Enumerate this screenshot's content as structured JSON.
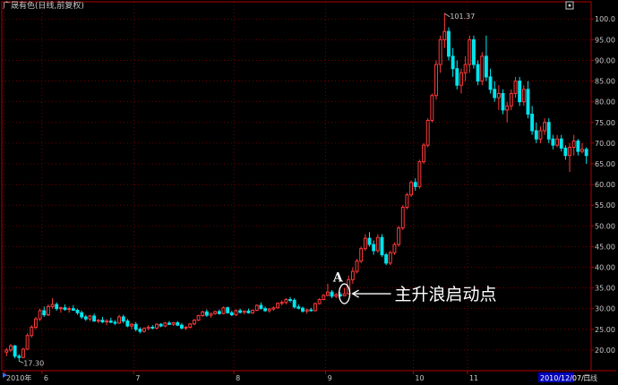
{
  "title": "广晟有色(日线,前复权)",
  "period_label": "日线",
  "date_readout": "2010/12/07/二",
  "colors": {
    "up": "#ff3a3a",
    "down": "#00e5ee",
    "grid": "#8a0000",
    "axis": "#b00000"
  },
  "icons": {
    "corner": "settings-icon",
    "scroll": "play-icon"
  },
  "chart_data": {
    "type": "candlestick",
    "title": "广晟有色(日线,前复权)",
    "ylim": [
      15,
      102
    ],
    "yticks": [
      20,
      25,
      30,
      35,
      40,
      45,
      50,
      55,
      60,
      65,
      70,
      75,
      80,
      85,
      90,
      95,
      100
    ],
    "ytick_labels": [
      "20.00",
      "25.00",
      "30.00",
      "35.00",
      "40.00",
      "45.00",
      "50.00",
      "55.00",
      "60.00",
      "65.00",
      "70.00",
      "75.00",
      "80.00",
      "85.00",
      "90.00",
      "95.00",
      "100.0"
    ],
    "xticks": [
      {
        "index": 0,
        "label": "2010年"
      },
      {
        "index": 9,
        "label": "6"
      },
      {
        "index": 31,
        "label": "7"
      },
      {
        "index": 55,
        "label": "8"
      },
      {
        "index": 77,
        "label": "9"
      },
      {
        "index": 98,
        "label": "10"
      },
      {
        "index": 111,
        "label": "11"
      }
    ],
    "grid": true,
    "candles": [
      [
        19.5,
        20.5,
        18.5,
        20.0
      ],
      [
        20.0,
        21.5,
        19.5,
        21.0
      ],
      [
        21.0,
        21.2,
        18.0,
        18.5
      ],
      [
        18.5,
        19.0,
        17.3,
        18.2
      ],
      [
        18.2,
        20.5,
        18.0,
        20.2
      ],
      [
        20.2,
        24.0,
        20.0,
        23.5
      ],
      [
        23.5,
        26.0,
        23.0,
        25.5
      ],
      [
        25.5,
        28.0,
        25.0,
        27.5
      ],
      [
        27.5,
        30.0,
        27.0,
        29.5
      ],
      [
        29.5,
        30.5,
        28.0,
        28.5
      ],
      [
        28.5,
        31.0,
        28.2,
        30.5
      ],
      [
        30.5,
        32.5,
        30.0,
        31.0
      ],
      [
        31.0,
        31.5,
        29.5,
        30.0
      ],
      [
        30.0,
        30.5,
        29.0,
        30.2
      ],
      [
        30.2,
        31.0,
        29.5,
        29.8
      ],
      [
        29.8,
        30.5,
        29.0,
        30.0
      ],
      [
        30.0,
        30.8,
        29.5,
        29.6
      ],
      [
        29.6,
        30.0,
        28.5,
        29.0
      ],
      [
        29.0,
        29.5,
        27.5,
        28.0
      ],
      [
        28.0,
        28.5,
        27.0,
        27.5
      ],
      [
        27.5,
        28.5,
        27.0,
        28.2
      ],
      [
        28.2,
        28.8,
        26.8,
        27.0
      ],
      [
        27.0,
        27.5,
        26.5,
        27.2
      ],
      [
        27.2,
        28.0,
        26.5,
        26.8
      ],
      [
        26.8,
        27.5,
        26.0,
        27.0
      ],
      [
        27.0,
        27.8,
        26.5,
        26.7
      ],
      [
        26.7,
        27.2,
        26.0,
        26.5
      ],
      [
        26.5,
        28.5,
        26.3,
        28.0
      ],
      [
        28.0,
        28.5,
        26.5,
        27.0
      ],
      [
        27.0,
        27.5,
        25.5,
        25.8
      ],
      [
        25.8,
        26.5,
        25.0,
        26.2
      ],
      [
        26.2,
        26.8,
        24.5,
        25.0
      ],
      [
        25.0,
        25.5,
        24.0,
        24.5
      ],
      [
        24.5,
        25.5,
        24.2,
        25.2
      ],
      [
        25.2,
        26.0,
        24.8,
        25.5
      ],
      [
        25.5,
        26.0,
        25.0,
        25.3
      ],
      [
        25.3,
        26.5,
        25.0,
        26.2
      ],
      [
        26.2,
        26.5,
        25.5,
        25.8
      ],
      [
        25.8,
        26.8,
        25.5,
        26.5
      ],
      [
        26.5,
        27.0,
        26.0,
        26.2
      ],
      [
        26.2,
        26.8,
        25.8,
        26.6
      ],
      [
        26.6,
        27.0,
        25.8,
        26.0
      ],
      [
        26.0,
        26.5,
        25.0,
        25.3
      ],
      [
        25.3,
        25.8,
        24.8,
        25.5
      ],
      [
        25.5,
        26.5,
        25.2,
        26.3
      ],
      [
        26.3,
        27.5,
        26.0,
        27.2
      ],
      [
        27.2,
        28.5,
        27.0,
        28.3
      ],
      [
        28.3,
        29.5,
        28.0,
        29.2
      ],
      [
        29.2,
        29.8,
        28.0,
        28.4
      ],
      [
        28.4,
        29.0,
        27.8,
        28.8
      ],
      [
        28.8,
        29.5,
        28.5,
        29.3
      ],
      [
        29.3,
        29.8,
        28.5,
        28.8
      ],
      [
        28.8,
        30.5,
        28.6,
        30.2
      ],
      [
        30.2,
        30.5,
        28.8,
        29.0
      ],
      [
        29.0,
        29.5,
        28.2,
        28.5
      ],
      [
        28.5,
        29.8,
        28.2,
        29.5
      ],
      [
        29.5,
        30.0,
        28.8,
        29.1
      ],
      [
        29.1,
        29.6,
        28.6,
        29.4
      ],
      [
        29.4,
        30.0,
        28.8,
        29.0
      ],
      [
        29.0,
        29.8,
        28.7,
        29.6
      ],
      [
        29.6,
        31.0,
        29.4,
        30.8
      ],
      [
        30.8,
        31.5,
        29.8,
        30.0
      ],
      [
        30.0,
        30.5,
        29.2,
        29.5
      ],
      [
        29.5,
        30.2,
        29.0,
        29.9
      ],
      [
        29.9,
        30.5,
        29.5,
        30.2
      ],
      [
        30.2,
        31.5,
        30.0,
        31.3
      ],
      [
        31.3,
        32.0,
        30.8,
        31.5
      ],
      [
        31.5,
        32.5,
        31.0,
        32.2
      ],
      [
        32.2,
        32.8,
        31.5,
        32.0
      ],
      [
        32.0,
        32.5,
        30.0,
        30.4
      ],
      [
        30.4,
        31.0,
        29.8,
        30.1
      ],
      [
        30.1,
        30.5,
        29.0,
        29.4
      ],
      [
        29.4,
        30.0,
        28.8,
        29.7
      ],
      [
        29.7,
        30.2,
        29.3,
        29.5
      ],
      [
        29.5,
        31.5,
        29.3,
        31.2
      ],
      [
        31.2,
        32.5,
        31.0,
        32.2
      ],
      [
        32.2,
        33.5,
        32.0,
        33.2
      ],
      [
        33.2,
        36.0,
        33.0,
        34.0
      ],
      [
        34.0,
        34.5,
        32.5,
        33.0
      ],
      [
        33.0,
        33.8,
        32.5,
        33.4
      ],
      [
        33.4,
        34.0,
        32.8,
        33.1
      ],
      [
        33.1,
        35.0,
        33.0,
        33.6
      ],
      [
        33.6,
        38.0,
        33.4,
        37.0
      ],
      [
        37.0,
        40.0,
        36.0,
        39.0
      ],
      [
        39.0,
        42.0,
        38.5,
        41.5
      ],
      [
        41.5,
        45.0,
        41.0,
        44.5
      ],
      [
        44.5,
        48.0,
        44.0,
        47.0
      ],
      [
        47.0,
        48.5,
        45.0,
        45.5
      ],
      [
        45.5,
        46.5,
        43.0,
        44.0
      ],
      [
        44.0,
        48.0,
        43.5,
        47.2
      ],
      [
        47.2,
        48.0,
        42.5,
        43.0
      ],
      [
        43.0,
        43.5,
        40.5,
        41.0
      ],
      [
        41.0,
        44.0,
        40.5,
        43.5
      ],
      [
        43.5,
        46.0,
        43.0,
        45.5
      ],
      [
        45.5,
        50.0,
        45.0,
        49.5
      ],
      [
        49.5,
        55.0,
        49.0,
        54.5
      ],
      [
        54.5,
        58.0,
        54.0,
        57.5
      ],
      [
        57.5,
        61.0,
        57.0,
        60.5
      ],
      [
        60.5,
        61.5,
        58.5,
        59.5
      ],
      [
        59.5,
        66.0,
        59.0,
        65.5
      ],
      [
        65.5,
        70.0,
        65.0,
        69.5
      ],
      [
        69.5,
        76.0,
        69.0,
        75.5
      ],
      [
        75.5,
        82.0,
        75.0,
        81.5
      ],
      [
        81.5,
        90.0,
        80.5,
        89.0
      ],
      [
        89.0,
        96.0,
        87.0,
        95.0
      ],
      [
        95.0,
        101.4,
        93.0,
        97.0
      ],
      [
        97.0,
        98.0,
        90.0,
        91.0
      ],
      [
        91.0,
        93.0,
        86.0,
        88.0
      ],
      [
        88.0,
        90.0,
        83.0,
        84.0
      ],
      [
        84.0,
        88.0,
        82.0,
        87.0
      ],
      [
        87.0,
        91.0,
        85.0,
        89.0
      ],
      [
        89.0,
        96.0,
        87.0,
        95.0
      ],
      [
        95.0,
        96.0,
        88.0,
        89.0
      ],
      [
        89.0,
        90.0,
        84.0,
        85.0
      ],
      [
        85.0,
        92.0,
        84.0,
        91.0
      ],
      [
        91.0,
        96.0,
        85.0,
        86.0
      ],
      [
        86.0,
        88.0,
        82.0,
        83.0
      ],
      [
        83.0,
        85.0,
        80.0,
        81.0
      ],
      [
        81.0,
        84.0,
        78.0,
        82.0
      ],
      [
        82.0,
        83.0,
        77.0,
        78.0
      ],
      [
        78.0,
        80.0,
        75.0,
        79.0
      ],
      [
        79.0,
        83.0,
        78.0,
        82.0
      ],
      [
        82.0,
        86.0,
        81.0,
        85.0
      ],
      [
        85.0,
        86.0,
        79.0,
        80.0
      ],
      [
        80.0,
        84.0,
        79.0,
        83.0
      ],
      [
        83.0,
        85.0,
        76.0,
        77.0
      ],
      [
        77.0,
        79.0,
        72.0,
        73.0
      ],
      [
        73.0,
        75.0,
        70.0,
        71.0
      ],
      [
        71.0,
        74.0,
        70.0,
        73.0
      ],
      [
        73.0,
        76.0,
        72.0,
        75.0
      ],
      [
        75.0,
        76.0,
        70.0,
        71.0
      ],
      [
        71.0,
        72.0,
        68.5,
        69.5
      ],
      [
        69.5,
        72.0,
        69.0,
        71.0
      ],
      [
        71.0,
        72.0,
        68.0,
        68.8
      ],
      [
        68.8,
        69.5,
        66.0,
        67.0
      ],
      [
        67.0,
        70.0,
        63.0,
        69.0
      ],
      [
        69.0,
        72.0,
        67.0,
        70.5
      ],
      [
        70.5,
        71.0,
        67.0,
        68.0
      ],
      [
        68.0,
        70.0,
        67.5,
        68.5
      ],
      [
        68.5,
        69.0,
        65.0,
        67.0
      ]
    ],
    "annotations": [
      {
        "label": "A",
        "index": 80,
        "value": 36.5
      },
      {
        "label": "101.37",
        "index": 105,
        "value": 101.37
      },
      {
        "label": "17.30",
        "index": 3,
        "value": 17.3
      },
      {
        "label": "主升浪启动点",
        "index": 81,
        "value": 33.6
      }
    ]
  }
}
